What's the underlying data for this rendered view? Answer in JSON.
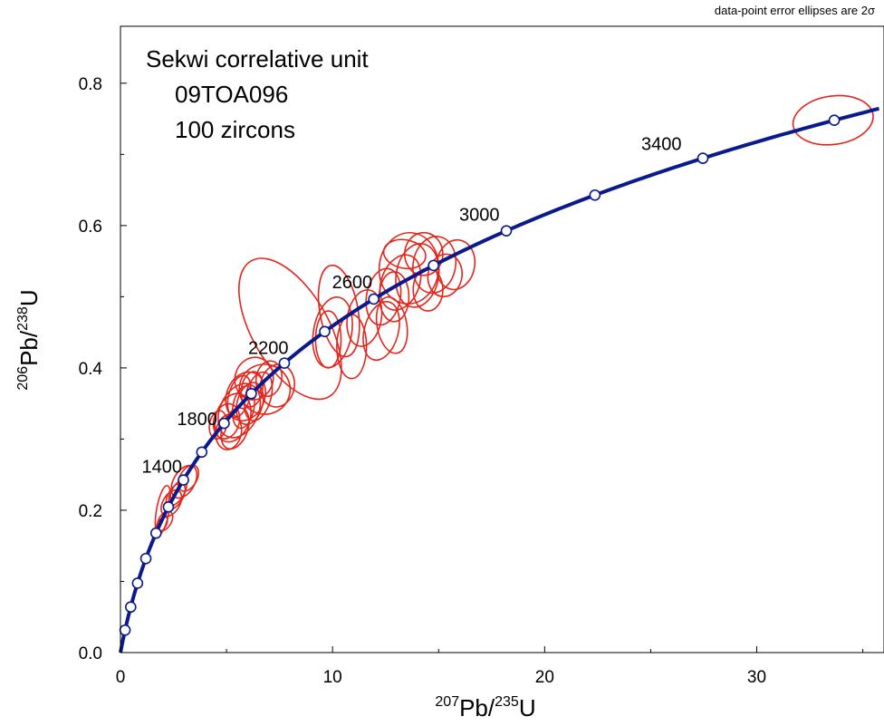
{
  "chart_data": {
    "type": "scatter",
    "note": "data-point error ellipses are 2σ",
    "annotation_lines": [
      "Sekwi correlative unit",
      "09TOA096",
      "100 zircons"
    ],
    "xlabel": {
      "sup": "207",
      "main": "Pb/",
      "sup2": "235",
      "main2": "U"
    },
    "ylabel": {
      "sup": "206",
      "main": "Pb/",
      "sup2": "238",
      "main2": "U"
    },
    "xlim": [
      0,
      36
    ],
    "ylim": [
      0,
      0.88
    ],
    "x_ticks": [
      0,
      10,
      20,
      30
    ],
    "x_tick_labels": [
      "0",
      "10",
      "20",
      "30"
    ],
    "y_ticks": [
      0.0,
      0.2,
      0.4,
      0.6,
      0.8
    ],
    "y_tick_labels": [
      "0.0",
      "0.2",
      "0.4",
      "0.6",
      "0.8"
    ],
    "concordia": {
      "color": "#0a1a8c",
      "age_markers_Ma": [
        200,
        400,
        600,
        800,
        1000,
        1200,
        1400,
        1600,
        1800,
        2000,
        2200,
        2400,
        2600,
        2800,
        3000,
        3200,
        3400,
        3600
      ],
      "age_labels": [
        {
          "age": 1400,
          "text": "1400"
        },
        {
          "age": 1800,
          "text": "1800"
        },
        {
          "age": 2200,
          "text": "2200"
        },
        {
          "age": 2600,
          "text": "2600"
        },
        {
          "age": 3000,
          "text": "3000"
        },
        {
          "age": 3400,
          "text": "3400"
        }
      ]
    },
    "ellipse_color": "#e3261c",
    "ellipses": [
      {
        "x": 33.6,
        "y": 0.748,
        "rx": 1.9,
        "ry": 0.034,
        "rot": -8
      },
      {
        "x": 8.0,
        "y": 0.455,
        "rx": 1.8,
        "ry": 0.11,
        "rot": -30
      },
      {
        "x": 10.3,
        "y": 0.48,
        "rx": 0.9,
        "ry": 0.065,
        "rot": -10
      },
      {
        "x": 10.0,
        "y": 0.45,
        "rx": 0.9,
        "ry": 0.05,
        "rot": 10
      },
      {
        "x": 9.8,
        "y": 0.44,
        "rx": 0.6,
        "ry": 0.04,
        "rot": 0
      },
      {
        "x": 10.9,
        "y": 0.43,
        "rx": 0.7,
        "ry": 0.045,
        "rot": 0
      },
      {
        "x": 11.5,
        "y": 0.47,
        "rx": 0.8,
        "ry": 0.04,
        "rot": 10
      },
      {
        "x": 12.3,
        "y": 0.452,
        "rx": 0.8,
        "ry": 0.042,
        "rot": 15
      },
      {
        "x": 12.4,
        "y": 0.5,
        "rx": 0.8,
        "ry": 0.04,
        "rot": 10
      },
      {
        "x": 12.8,
        "y": 0.46,
        "rx": 0.7,
        "ry": 0.04,
        "rot": -10
      },
      {
        "x": 13.6,
        "y": 0.54,
        "rx": 1.4,
        "ry": 0.05,
        "rot": 5
      },
      {
        "x": 14.0,
        "y": 0.53,
        "rx": 1.0,
        "ry": 0.045,
        "rot": 10
      },
      {
        "x": 14.5,
        "y": 0.51,
        "rx": 0.7,
        "ry": 0.03,
        "rot": 0
      },
      {
        "x": 14.8,
        "y": 0.545,
        "rx": 1.0,
        "ry": 0.04,
        "rot": 10
      },
      {
        "x": 15.3,
        "y": 0.53,
        "rx": 0.8,
        "ry": 0.03,
        "rot": 10
      },
      {
        "x": 15.8,
        "y": 0.545,
        "rx": 0.9,
        "ry": 0.035,
        "rot": 10
      },
      {
        "x": 13.2,
        "y": 0.52,
        "rx": 0.9,
        "ry": 0.04,
        "rot": 20
      },
      {
        "x": 12.9,
        "y": 0.5,
        "rx": 0.7,
        "ry": 0.035,
        "rot": 0
      },
      {
        "x": 14.3,
        "y": 0.56,
        "rx": 0.9,
        "ry": 0.03,
        "rot": 0
      },
      {
        "x": 13.4,
        "y": 0.56,
        "rx": 1.0,
        "ry": 0.02,
        "rot": 10
      },
      {
        "x": 6.3,
        "y": 0.385,
        "rx": 0.9,
        "ry": 0.03,
        "rot": 15
      },
      {
        "x": 6.8,
        "y": 0.37,
        "rx": 1.2,
        "ry": 0.035,
        "rot": 15
      },
      {
        "x": 7.4,
        "y": 0.375,
        "rx": 0.8,
        "ry": 0.03,
        "rot": 10
      },
      {
        "x": 5.9,
        "y": 0.36,
        "rx": 0.9,
        "ry": 0.035,
        "rot": 20
      },
      {
        "x": 5.6,
        "y": 0.34,
        "rx": 0.9,
        "ry": 0.04,
        "rot": 25
      },
      {
        "x": 5.3,
        "y": 0.33,
        "rx": 0.8,
        "ry": 0.035,
        "rot": 20
      },
      {
        "x": 5.0,
        "y": 0.325,
        "rx": 0.6,
        "ry": 0.025,
        "rot": 15
      },
      {
        "x": 6.1,
        "y": 0.35,
        "rx": 0.6,
        "ry": 0.03,
        "rot": 15
      },
      {
        "x": 5.8,
        "y": 0.345,
        "rx": 0.5,
        "ry": 0.03,
        "rot": 10
      },
      {
        "x": 6.5,
        "y": 0.36,
        "rx": 0.6,
        "ry": 0.035,
        "rot": 15
      },
      {
        "x": 5.4,
        "y": 0.315,
        "rx": 0.6,
        "ry": 0.03,
        "rot": 20
      },
      {
        "x": 5.1,
        "y": 0.31,
        "rx": 0.6,
        "ry": 0.025,
        "rot": 10
      },
      {
        "x": 6.2,
        "y": 0.37,
        "rx": 0.5,
        "ry": 0.025,
        "rot": 10
      },
      {
        "x": 7.0,
        "y": 0.385,
        "rx": 0.6,
        "ry": 0.025,
        "rot": 10
      },
      {
        "x": 4.6,
        "y": 0.32,
        "rx": 0.4,
        "ry": 0.02,
        "rot": 10
      },
      {
        "x": 5.6,
        "y": 0.36,
        "rx": 0.5,
        "ry": 0.03,
        "rot": 15
      },
      {
        "x": 2.7,
        "y": 0.225,
        "rx": 0.3,
        "ry": 0.02,
        "rot": 30
      },
      {
        "x": 3.0,
        "y": 0.24,
        "rx": 0.5,
        "ry": 0.025,
        "rot": 30
      },
      {
        "x": 3.2,
        "y": 0.245,
        "rx": 0.4,
        "ry": 0.02,
        "rot": 30
      },
      {
        "x": 2.4,
        "y": 0.21,
        "rx": 0.4,
        "ry": 0.02,
        "rot": 30
      },
      {
        "x": 2.0,
        "y": 0.2,
        "rx": 0.3,
        "ry": 0.035,
        "rot": 10
      },
      {
        "x": 2.1,
        "y": 0.185,
        "rx": 0.3,
        "ry": 0.015,
        "rot": 30
      },
      {
        "x": 1.95,
        "y": 0.18,
        "rx": 0.2,
        "ry": 0.012,
        "rot": 30
      },
      {
        "x": 2.6,
        "y": 0.22,
        "rx": 0.35,
        "ry": 0.02,
        "rot": 30
      }
    ]
  }
}
